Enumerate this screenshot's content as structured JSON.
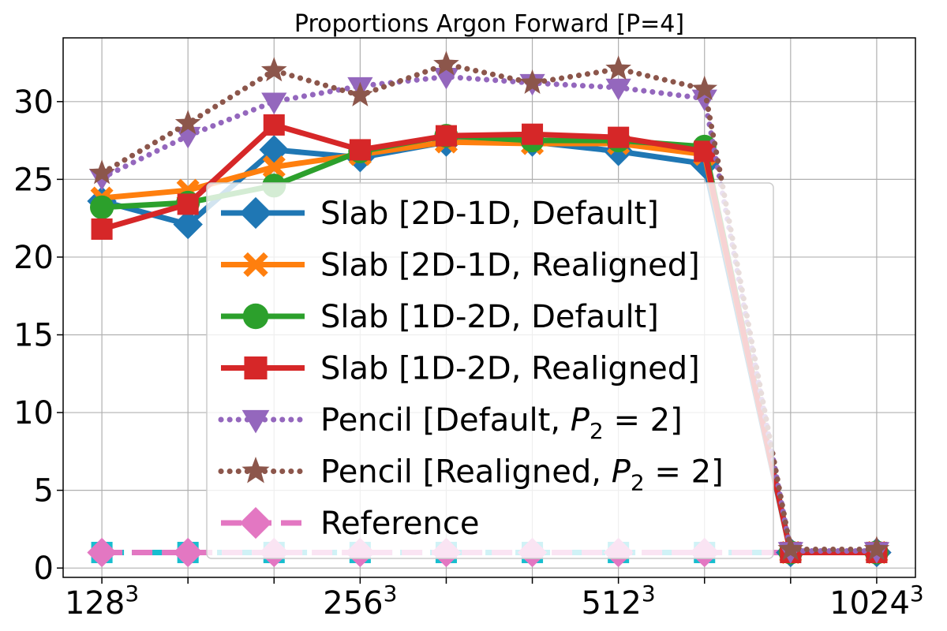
{
  "chart_data": {
    "type": "line",
    "title": "Proportions Argon Forward [P=4]",
    "xlabel": "",
    "ylabel": "",
    "x_positions": [
      0,
      1,
      2,
      3,
      4,
      5,
      6,
      7,
      8,
      9
    ],
    "xticklabels": [
      {
        "at": 0,
        "base": "128",
        "exp": "3"
      },
      {
        "at": 3,
        "base": "256",
        "exp": "3"
      },
      {
        "at": 6,
        "base": "512",
        "exp": "3"
      },
      {
        "at": 9,
        "base": "1024",
        "exp": "3"
      }
    ],
    "minor_x_ticks": [
      1,
      2,
      4,
      5,
      7,
      8
    ],
    "yticks": [
      0,
      5,
      10,
      15,
      20,
      25,
      30
    ],
    "xlim": [
      -0.45,
      9.45
    ],
    "ylim": [
      -0.6,
      34.1
    ],
    "grid": true,
    "legend_position": "center",
    "series": [
      {
        "name": "Slab [2D-1D, Default]",
        "color": "#1f77b4",
        "marker": "diamond",
        "dash": "solid",
        "values": [
          23.6,
          22.1,
          26.9,
          26.4,
          27.4,
          27.4,
          26.8,
          26.0,
          1.0,
          1.0
        ]
      },
      {
        "name": "Slab [2D-1D, Realigned]",
        "color": "#ff7f0e",
        "marker": "x-filled",
        "dash": "solid",
        "values": [
          23.8,
          24.3,
          25.8,
          26.6,
          27.4,
          27.3,
          27.3,
          26.6,
          1.0,
          1.0
        ]
      },
      {
        "name": "Slab [1D-2D, Default]",
        "color": "#2ca02c",
        "marker": "circle",
        "dash": "solid",
        "values": [
          23.2,
          23.5,
          24.6,
          26.8,
          27.8,
          27.5,
          27.5,
          27.1,
          1.0,
          1.0
        ]
      },
      {
        "name": "Slab [1D-2D, Realigned]",
        "color": "#d62728",
        "marker": "square",
        "dash": "solid",
        "values": [
          21.8,
          23.4,
          28.5,
          26.9,
          27.8,
          27.9,
          27.7,
          26.8,
          1.0,
          1.0
        ]
      },
      {
        "name_prefix": "Pencil [Default, ",
        "name_math": "P",
        "name_sub": "2",
        "name_suffix": " = 2]",
        "color": "#9467bd",
        "marker": "triangle-down",
        "dash": "dotted",
        "values": [
          25.1,
          27.8,
          30.0,
          31.0,
          31.6,
          31.2,
          30.9,
          30.2,
          1.1,
          1.1
        ]
      },
      {
        "name_prefix": "Pencil [Realigned, ",
        "name_math": "P",
        "name_sub": "2",
        "name_suffix": " = 2]",
        "color": "#8c564b",
        "marker": "star",
        "dash": "dotted",
        "values": [
          25.4,
          28.6,
          32.0,
          30.4,
          32.4,
          31.2,
          32.1,
          30.8,
          1.2,
          1.2
        ]
      },
      {
        "name": "Reference",
        "color": "#e377c2",
        "marker": "diamond",
        "dash": "dashed",
        "values": [
          1.0,
          1.0,
          1.0,
          1.0,
          1.0,
          1.0,
          1.0,
          1.0,
          1.0,
          1.0
        ]
      },
      {
        "name": "",
        "color": "#17becf",
        "marker": "square",
        "dash": "dashdot",
        "values": [
          1.0,
          1.0,
          1.0,
          1.0,
          1.0,
          1.0,
          1.0,
          1.0,
          1.0,
          1.0
        ]
      }
    ]
  }
}
